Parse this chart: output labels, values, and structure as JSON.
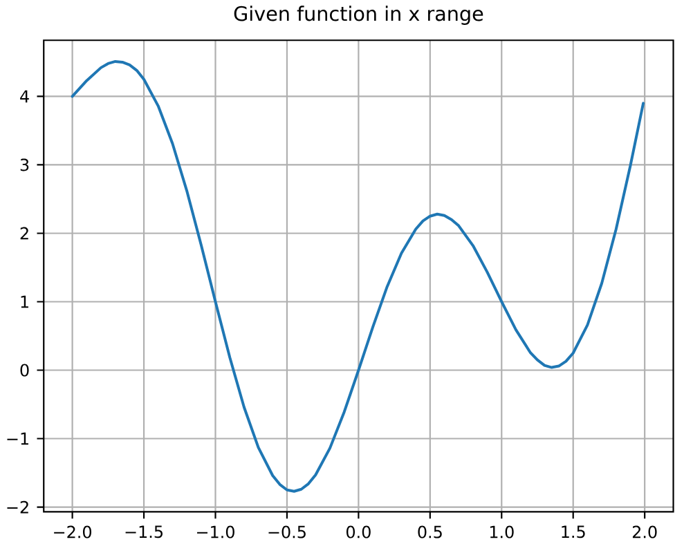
{
  "chart_data": {
    "type": "line",
    "title": "Given function in x range",
    "x": [
      -2.0,
      -1.9,
      -1.8,
      -1.75,
      -1.7,
      -1.65,
      -1.6,
      -1.55,
      -1.5,
      -1.4,
      -1.3,
      -1.2,
      -1.1,
      -1.0,
      -0.9,
      -0.8,
      -0.7,
      -0.6,
      -0.55,
      -0.5,
      -0.45,
      -0.4,
      -0.35,
      -0.3,
      -0.2,
      -0.1,
      0.0,
      0.1,
      0.2,
      0.3,
      0.4,
      0.45,
      0.5,
      0.55,
      0.6,
      0.65,
      0.7,
      0.8,
      0.9,
      1.0,
      1.1,
      1.2,
      1.25,
      1.3,
      1.35,
      1.4,
      1.45,
      1.5,
      1.6,
      1.7,
      1.8,
      1.9,
      1.99
    ],
    "values": [
      4.0,
      4.23,
      4.42,
      4.48,
      4.51,
      4.5,
      4.46,
      4.38,
      4.25,
      3.86,
      3.31,
      2.62,
      1.83,
      1.0,
      0.19,
      -0.54,
      -1.13,
      -1.54,
      -1.67,
      -1.75,
      -1.77,
      -1.74,
      -1.66,
      -1.53,
      -1.14,
      -0.61,
      0.0,
      0.63,
      1.22,
      1.71,
      2.06,
      2.18,
      2.25,
      2.28,
      2.26,
      2.2,
      2.11,
      1.82,
      1.43,
      1.0,
      0.59,
      0.26,
      0.15,
      0.07,
      0.04,
      0.06,
      0.13,
      0.25,
      0.66,
      1.27,
      2.06,
      2.99,
      3.9
    ],
    "color": "#1f77b4",
    "xlim": [
      -2.2,
      2.2
    ],
    "ylim": [
      -2.07,
      4.82
    ],
    "xticks": [
      {
        "value": -2.0,
        "label": "−2.0"
      },
      {
        "value": -1.5,
        "label": "−1.5"
      },
      {
        "value": -1.0,
        "label": "−1.0"
      },
      {
        "value": -0.5,
        "label": "−0.5"
      },
      {
        "value": 0.0,
        "label": "0.0"
      },
      0.5,
      {
        "value": 1.0,
        "label": "1.0"
      },
      1.5,
      {
        "value": 2.0,
        "label": "2.0"
      }
    ],
    "yticks": [
      {
        "value": -2,
        "label": "−2"
      },
      {
        "value": -1,
        "label": "−1"
      },
      0,
      1,
      2,
      3,
      4
    ],
    "grid": true
  }
}
